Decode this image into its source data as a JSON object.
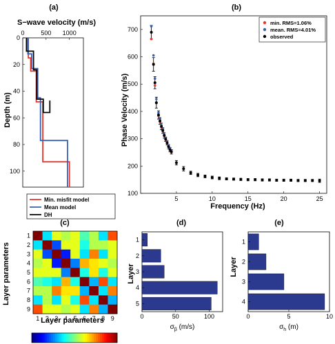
{
  "colors": {
    "red": "#e8352b",
    "blue": "#3a5fb0",
    "black": "#000000",
    "bar": "#2b3a8f"
  },
  "panel_labels": {
    "a": "(a)",
    "b": "(b)",
    "c": "(c)",
    "d": "(d)",
    "e": "(e)"
  },
  "chart_data": [
    {
      "id": "a",
      "type": "line",
      "title": "S−wave velocity (m/s)",
      "xlabel": "",
      "ylabel": "Depth (m)",
      "xlim": [
        0,
        1300
      ],
      "ylim": [
        0,
        112
      ],
      "xticks": [
        0,
        500,
        1000
      ],
      "yticks": [
        0,
        20,
        40,
        60,
        80,
        100
      ],
      "y_reversed": true,
      "x_axis_on_top": true,
      "legend_placement": "bottom",
      "series": [
        {
          "name": "Min. misfit model",
          "color": "red",
          "steps": [
            [
              120,
              0
            ],
            [
              120,
              15
            ],
            [
              170,
              15
            ],
            [
              170,
              25
            ],
            [
              290,
              25
            ],
            [
              290,
              48
            ],
            [
              430,
              48
            ],
            [
              430,
              93
            ],
            [
              1000,
              93
            ],
            [
              1000,
              112
            ]
          ]
        },
        {
          "name": "Mean model",
          "color": "blue",
          "steps": [
            [
              110,
              0
            ],
            [
              110,
              12
            ],
            [
              190,
              12
            ],
            [
              190,
              23
            ],
            [
              320,
              23
            ],
            [
              320,
              45
            ],
            [
              380,
              45
            ],
            [
              380,
              77
            ],
            [
              960,
              77
            ],
            [
              960,
              112
            ]
          ]
        },
        {
          "name": "DH",
          "color": "black",
          "steps": [
            [
              80,
              0
            ],
            [
              80,
              10
            ],
            [
              230,
              10
            ],
            [
              230,
              24
            ],
            [
              300,
              24
            ],
            [
              300,
              46
            ],
            [
              440,
              46
            ],
            [
              440,
              56
            ],
            [
              580,
              56
            ],
            [
              580,
              47
            ]
          ]
        }
      ]
    },
    {
      "id": "b",
      "type": "scatter",
      "title": "",
      "xlabel": "Frequency (Hz)",
      "ylabel": "Phase Velocity (m/s)",
      "xlim": [
        0,
        26
      ],
      "ylim": [
        100,
        750
      ],
      "xticks": [
        5,
        10,
        15,
        20,
        25
      ],
      "yticks": [
        100,
        200,
        300,
        400,
        500,
        600,
        700
      ],
      "legend_placement": "top-right",
      "series": [
        {
          "name": "min.  RMS=1.06%",
          "color": "red"
        },
        {
          "name": "mean. RMS=4.01%",
          "color": "blue"
        },
        {
          "name": "observed",
          "color": "black"
        }
      ],
      "observed": [
        [
          1.5,
          690,
          25
        ],
        [
          1.8,
          572,
          25
        ],
        [
          2.0,
          505,
          22
        ],
        [
          2.2,
          432,
          20
        ],
        [
          2.5,
          387,
          15
        ],
        [
          2.7,
          365,
          12
        ],
        [
          2.9,
          345,
          12
        ],
        [
          3.1,
          330,
          10
        ],
        [
          3.3,
          312,
          10
        ],
        [
          3.5,
          298,
          8
        ],
        [
          3.7,
          285,
          8
        ],
        [
          3.9,
          271,
          8
        ],
        [
          4.1,
          260,
          8
        ],
        [
          4.3,
          252,
          8
        ],
        [
          5.0,
          212,
          8
        ],
        [
          6.0,
          190,
          8
        ],
        [
          7.0,
          175,
          6
        ],
        [
          8.0,
          167,
          6
        ],
        [
          9.0,
          162,
          5
        ],
        [
          10.0,
          158,
          5
        ],
        [
          11.0,
          155,
          5
        ],
        [
          12.0,
          153,
          4
        ],
        [
          13.0,
          152,
          4
        ],
        [
          14.0,
          151,
          4
        ],
        [
          15.0,
          150,
          4
        ],
        [
          16.0,
          150,
          4
        ],
        [
          17.0,
          149,
          4
        ],
        [
          18.0,
          149,
          4
        ],
        [
          19.0,
          148,
          4
        ],
        [
          20.0,
          148,
          4
        ],
        [
          21.0,
          148,
          4
        ],
        [
          22.0,
          147,
          4
        ],
        [
          23.0,
          147,
          4
        ],
        [
          24.0,
          147,
          4
        ],
        [
          25.0,
          146,
          6
        ]
      ],
      "min_model": [
        [
          1.5,
          665
        ],
        [
          1.8,
          575
        ],
        [
          2.0,
          495
        ],
        [
          2.2,
          430
        ],
        [
          2.5,
          383
        ],
        [
          2.7,
          362
        ],
        [
          2.9,
          342
        ],
        [
          3.1,
          328
        ],
        [
          3.3,
          310
        ],
        [
          3.5,
          296
        ],
        [
          3.7,
          283
        ],
        [
          3.9,
          270
        ],
        [
          4.1,
          259
        ],
        [
          4.3,
          251
        ]
      ],
      "mean_model": [
        [
          1.5,
          712
        ],
        [
          1.8,
          605
        ],
        [
          2.0,
          520
        ],
        [
          2.2,
          445
        ],
        [
          2.5,
          395
        ],
        [
          2.7,
          372
        ],
        [
          2.9,
          350
        ],
        [
          3.1,
          335
        ],
        [
          3.3,
          316
        ],
        [
          3.5,
          302
        ],
        [
          3.7,
          290
        ],
        [
          3.9,
          276
        ],
        [
          4.1,
          265
        ],
        [
          4.3,
          256
        ]
      ]
    },
    {
      "id": "c",
      "type": "heatmap",
      "title": "",
      "xlabel": "Layer parameters",
      "ylabel": "Layer parameters",
      "xticks": [
        "1",
        "2",
        "3",
        "4",
        "5",
        "6",
        "7",
        "8",
        "9"
      ],
      "yticks": [
        "1",
        "2",
        "3",
        "4",
        "5",
        "6",
        "7",
        "8",
        "9"
      ],
      "clim": [
        -1,
        1
      ],
      "colorbar_placement": "bottom",
      "matrix": [
        [
          1.0,
          -0.3,
          0.2,
          0.1,
          0.2,
          -0.1,
          0.1,
          -0.3,
          0.6
        ],
        [
          -0.3,
          1.0,
          -0.6,
          0.2,
          0.2,
          -0.2,
          0.1,
          0.1,
          0.2
        ],
        [
          0.2,
          -0.6,
          1.0,
          -0.7,
          0.2,
          -0.3,
          0.5,
          -0.3,
          0.2
        ],
        [
          0.1,
          0.2,
          -0.7,
          1.0,
          -0.5,
          0.4,
          0.3,
          0.2,
          0.1
        ],
        [
          0.2,
          0.2,
          0.2,
          -0.5,
          1.0,
          -0.2,
          0.3,
          -0.2,
          0.2
        ],
        [
          -0.1,
          -0.2,
          -0.3,
          0.4,
          -0.2,
          1.0,
          -0.4,
          0.6,
          -0.3
        ],
        [
          0.1,
          0.1,
          0.5,
          0.3,
          0.3,
          -0.4,
          1.0,
          -0.3,
          0.5
        ],
        [
          -0.3,
          0.1,
          -0.3,
          0.2,
          -0.2,
          0.6,
          -0.3,
          1.0,
          -0.4
        ],
        [
          0.6,
          0.2,
          0.2,
          0.1,
          0.2,
          -0.3,
          0.5,
          -0.4,
          1.0
        ]
      ]
    },
    {
      "id": "d",
      "type": "bar",
      "orientation": "horizontal",
      "title": "",
      "xlabel": "σβ (m/s)",
      "ylabel": "Layer",
      "categories": [
        "1",
        "2",
        "3",
        "4",
        "5"
      ],
      "values": [
        8,
        28,
        33,
        112,
        103
      ],
      "xlim": [
        0,
        120
      ],
      "xticks": [
        0,
        50,
        100
      ]
    },
    {
      "id": "e",
      "type": "bar",
      "orientation": "horizontal",
      "title": "",
      "xlabel": "σh (m)",
      "ylabel": "Layer",
      "categories": [
        "1",
        "2",
        "3",
        "4"
      ],
      "values": [
        1.3,
        2.2,
        4.4,
        9.4
      ],
      "xlim": [
        0,
        10
      ],
      "xticks": [
        0,
        5,
        10
      ]
    }
  ]
}
